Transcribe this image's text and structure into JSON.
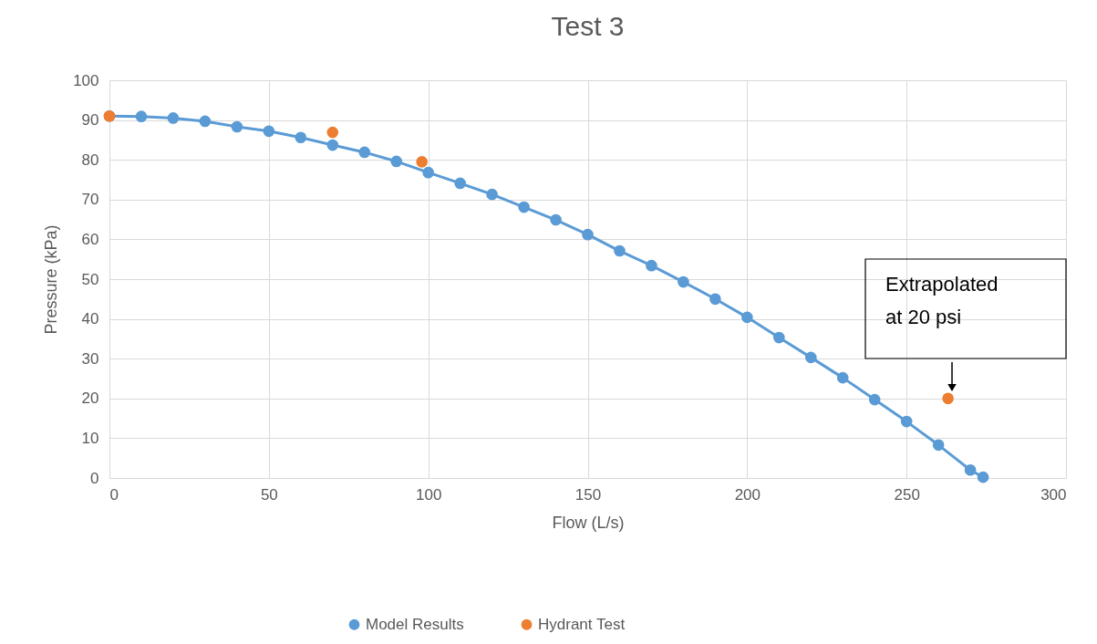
{
  "chart_data": {
    "type": "line",
    "title": "Test 3",
    "xlabel": "Flow (L/s)",
    "ylabel": "Pressure (kPa)",
    "xlim": [
      0,
      300
    ],
    "xticks": [
      0,
      50,
      100,
      150,
      200,
      250,
      300
    ],
    "ylim": [
      0,
      100
    ],
    "yticks": [
      0,
      10,
      20,
      30,
      40,
      50,
      60,
      70,
      80,
      90,
      100
    ],
    "grid": true,
    "legend": "bottom",
    "marker": "circle",
    "annotations": [
      "Extrapolated\nat 20 psi"
    ],
    "series": [
      {
        "name": "Model Results",
        "color": "#5b9bd5",
        "x": [
          0,
          10,
          20,
          30,
          40,
          50,
          60,
          70,
          80,
          90,
          100,
          110,
          120,
          130,
          140,
          150,
          160,
          170,
          180,
          190,
          200,
          210,
          220,
          230,
          240,
          250,
          260,
          270,
          274
        ],
        "values": [
          91,
          90.9,
          90.5,
          89.7,
          88.3,
          87.2,
          85.6,
          83.7,
          81.9,
          79.6,
          76.8,
          74.1,
          71.3,
          68.1,
          64.9,
          61.2,
          57.1,
          53.4,
          49.3,
          45,
          40.4,
          35.3,
          30.3,
          25.2,
          19.7,
          14.2,
          8.3,
          2,
          0.2
        ]
      },
      {
        "name": "Hydrant Test",
        "type": "scatter",
        "color": "#ed7d31",
        "x": [
          0,
          70,
          98,
          263
        ],
        "values": [
          91,
          86.9,
          79.5,
          20
        ]
      }
    ]
  }
}
